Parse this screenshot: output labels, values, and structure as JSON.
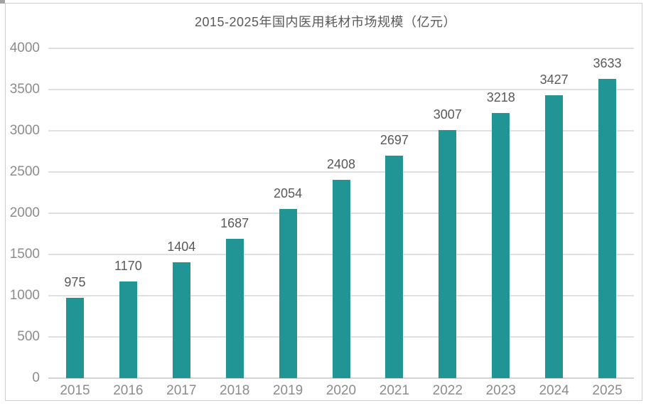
{
  "frame": {
    "border_color": "#cfcfcf",
    "corner_artifact_color": "#a3a3a3"
  },
  "chart_data": {
    "type": "bar",
    "title": "2015-2025年国内医用耗材市场规模（亿元）",
    "categories": [
      "2015",
      "2016",
      "2017",
      "2018",
      "2019",
      "2020",
      "2021",
      "2022",
      "2023",
      "2024",
      "2025"
    ],
    "values": [
      975,
      1170,
      1404,
      1687,
      2054,
      2408,
      2697,
      3007,
      3218,
      3427,
      3633
    ],
    "xlabel": "",
    "ylabel": "",
    "ylim": [
      0,
      4000
    ],
    "yticks": [
      0,
      500,
      1000,
      1500,
      2000,
      2500,
      3000,
      3500,
      4000
    ],
    "grid": true,
    "legend": "none",
    "data_labels": true,
    "colors": {
      "bar": "#219495",
      "title_text": "#595959",
      "value_label_text": "#595959",
      "tick_label_text": "#8c8c8c",
      "gridline": "#e0e0e0",
      "axis_baseline": "#d4d4d4"
    }
  }
}
